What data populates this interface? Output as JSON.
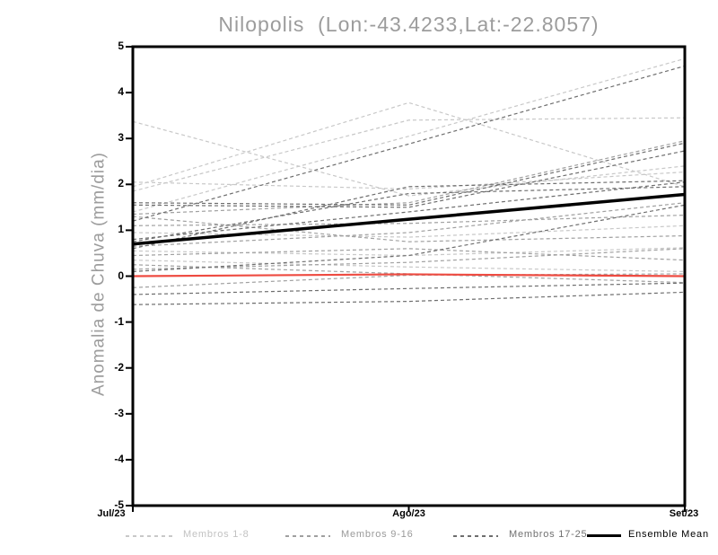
{
  "window": {
    "background": "#ffffff"
  },
  "chart_data": {
    "type": "line",
    "title": "Nilopolis  (Lon:-43.4233,Lat:-22.8057)",
    "ylabel": "Anomalia de Chuva (mm/dia)",
    "x_categories": [
      "Jul/23",
      "Ago/23",
      "Set/23"
    ],
    "y_ticks": [
      5,
      4,
      3,
      2,
      1,
      0,
      -1,
      -2,
      -3,
      -4,
      -5
    ],
    "ylim": [
      -5,
      5
    ],
    "grid": false,
    "legend_position": "bottom",
    "axis_color": "#000000",
    "groups": [
      {
        "name": "Membros 1-8",
        "color": "#c8c8c8",
        "label_color": "#c2c2c2",
        "style": "dashed",
        "members": [
          [
            3.37,
            1.75,
            2.4
          ],
          [
            1.85,
            3.4,
            3.45
          ],
          [
            1.95,
            3.78,
            1.95
          ],
          [
            1.4,
            3.05,
            4.74
          ],
          [
            2.05,
            1.9,
            2.27
          ],
          [
            0.95,
            0.85,
            1.1
          ],
          [
            0.35,
            0.2,
            0.1
          ],
          [
            0.55,
            0.45,
            0.62
          ]
        ]
      },
      {
        "name": "Membros 9-16",
        "color": "#a0a0a0",
        "label_color": "#9a9a9a",
        "style": "dashed",
        "members": [
          [
            1.35,
            1.6,
            2.95
          ],
          [
            1.3,
            0.75,
            0.88
          ],
          [
            1.1,
            1.15,
            1.33
          ],
          [
            0.65,
            0.95,
            1.6
          ],
          [
            0.45,
            0.6,
            0.35
          ],
          [
            0.25,
            0.05,
            -0.14
          ],
          [
            -0.25,
            0.02,
            0.05
          ],
          [
            0.15,
            0.3,
            0.6
          ]
        ]
      },
      {
        "name": "Membros 17-25",
        "color": "#6e6e6e",
        "label_color": "#707070",
        "style": "dashed",
        "members": [
          [
            1.2,
            2.88,
            4.58
          ],
          [
            1.6,
            1.55,
            2.9
          ],
          [
            1.55,
            1.5,
            2.73
          ],
          [
            0.8,
            1.4,
            2.05
          ],
          [
            0.75,
            1.8,
            1.95
          ],
          [
            0.6,
            1.95,
            2.08
          ],
          [
            0.1,
            0.45,
            1.55
          ],
          [
            -0.4,
            -0.27,
            -0.15
          ],
          [
            -0.62,
            -0.55,
            -0.35
          ]
        ]
      }
    ],
    "reference_line": {
      "color": "#ee4b41",
      "values": [
        0.0,
        0.04,
        0.0
      ]
    },
    "ensemble_mean": {
      "name": "Ensemble Mean",
      "color": "#000000",
      "values": [
        0.7,
        1.24,
        1.78
      ]
    }
  }
}
